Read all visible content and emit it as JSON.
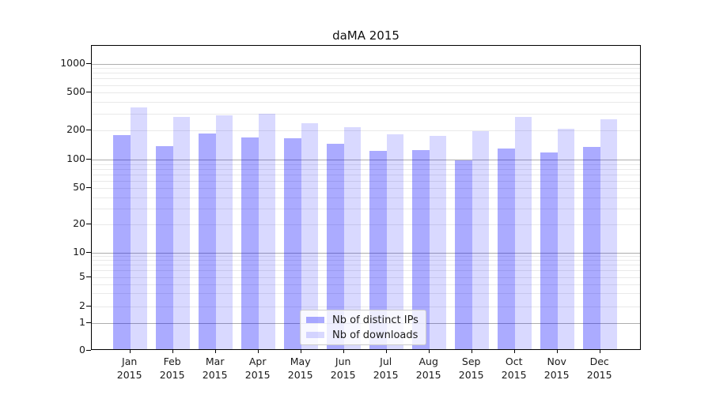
{
  "chart_data": {
    "type": "bar",
    "title": "daMA 2015",
    "categories": [
      "Jan 2015",
      "Feb 2015",
      "Mar 2015",
      "Apr 2015",
      "May 2015",
      "Jun 2015",
      "Jul 2015",
      "Aug 2015",
      "Sep 2015",
      "Oct 2015",
      "Nov 2015",
      "Dec 2015"
    ],
    "series": [
      {
        "name": "Nb of distinct IPs",
        "color": "rgba(0,0,255,0.33)",
        "values": [
          176,
          136,
          182,
          165,
          163,
          143,
          121,
          124,
          97,
          129,
          116,
          133
        ]
      },
      {
        "name": "Nb of downloads",
        "color": "rgba(0,0,255,0.15)",
        "values": [
          343,
          270,
          284,
          293,
          234,
          213,
          179,
          172,
          194,
          272,
          203,
          255
        ]
      }
    ],
    "xlabel": "",
    "ylabel": "",
    "yscale": "symlog",
    "yticks": [
      0,
      1,
      2,
      5,
      10,
      20,
      50,
      100,
      200,
      500,
      1000
    ],
    "ylim": [
      0,
      1500
    ],
    "grid": "on",
    "legend_position": "lower-center",
    "colors": {
      "grid_major": "#adadad",
      "grid_minor": "#e9e9e9",
      "axis_spine": "#000000",
      "text": "#1a1a1a",
      "background": "#ffffff"
    }
  }
}
